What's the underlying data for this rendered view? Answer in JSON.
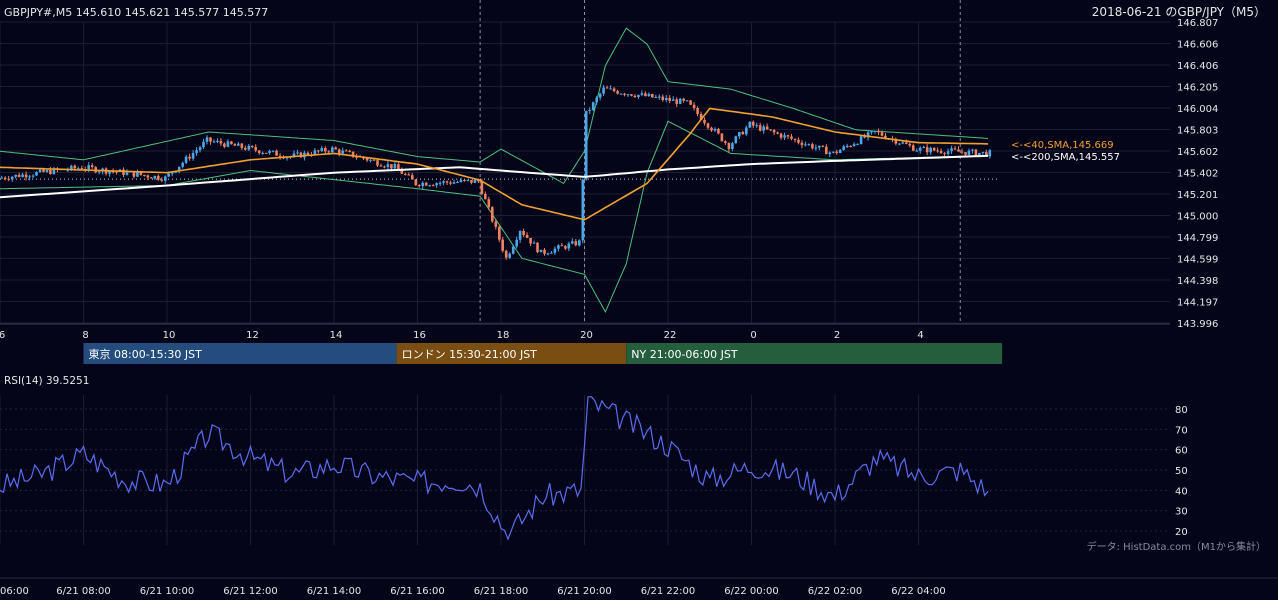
{
  "header": {
    "ohlc_label": "GBPJPY#,M5 145.610 145.621 145.577 145.577",
    "title": "2018-06-21 のGBP/JPY（M5）"
  },
  "price_axis": {
    "labels": [
      "146.807",
      "146.606",
      "146.406",
      "146.205",
      "146.004",
      "145.803",
      "145.602",
      "145.402",
      "145.201",
      "145.000",
      "144.799",
      "144.599",
      "144.398",
      "144.197",
      "143.996"
    ]
  },
  "time_axis_top": {
    "labels": [
      "6",
      "8",
      "10",
      "12",
      "14",
      "16",
      "18",
      "20",
      "22",
      "0",
      "2",
      "4"
    ]
  },
  "time_axis_bottom": {
    "labels": [
      "06:00",
      "6/21 08:00",
      "6/21 10:00",
      "6/21 12:00",
      "6/21 14:00",
      "6/21 16:00",
      "6/21 18:00",
      "6/21 20:00",
      "6/21 22:00",
      "6/22 00:00",
      "6/22 02:00",
      "6/22 04:00"
    ]
  },
  "sessions": [
    {
      "label": "東京 08:00-15:30 JST",
      "color": "#244d7e"
    },
    {
      "label": "ロンドン 15:30-21:00 JST",
      "color": "#7a4e12"
    },
    {
      "label": "NY 21:00-06:00 JST",
      "color": "#245e3c"
    }
  ],
  "indicator_labels": {
    "sma40": "<-<40,SMA,145.669",
    "sma200": "<-<200,SMA,145.557"
  },
  "rsi": {
    "title": "RSI(14) 39.5251",
    "labels": [
      "80",
      "70",
      "60",
      "50",
      "40",
      "30",
      "20"
    ]
  },
  "credit": "データ: HistData.com（M1から集計）",
  "colors": {
    "background": "#05051a",
    "candle_up": "#4aa8e8",
    "candle_down": "#f08060",
    "sma40": "#f0a030",
    "sma200": "#ffffff",
    "bollinger": "#4ec07a",
    "rsi_line": "#5a6cf0",
    "sma40_label": "#f0a030",
    "sma200_label": "#ffffff"
  },
  "chart_data": [
    {
      "type": "candlestick",
      "series_name": "GBPJPY#,M5",
      "ylim": [
        143.996,
        146.807
      ],
      "x_range": [
        "2018-06-21 06:00",
        "2018-06-22 05:40"
      ],
      "dotted_reference_price": 145.34,
      "key_points": [
        {
          "time": "2018-06-21 06:00",
          "price": 145.35
        },
        {
          "time": "2018-06-21 08:00",
          "price": 145.45
        },
        {
          "time": "2018-06-21 10:00",
          "price": 145.35
        },
        {
          "time": "2018-06-21 11:00",
          "price": 145.7
        },
        {
          "time": "2018-06-21 13:00",
          "price": 145.55
        },
        {
          "time": "2018-06-21 14:00",
          "price": 145.62
        },
        {
          "time": "2018-06-21 15:30",
          "price": 145.45
        },
        {
          "time": "2018-06-21 16:00",
          "price": 145.3
        },
        {
          "time": "2018-06-21 17:30",
          "price": 145.32
        },
        {
          "time": "2018-06-21 18:10",
          "price": 144.6
        },
        {
          "time": "2018-06-21 18:30",
          "price": 144.87
        },
        {
          "time": "2018-06-21 19:00",
          "price": 144.65
        },
        {
          "time": "2018-06-21 19:55",
          "price": 144.75
        },
        {
          "time": "2018-06-21 20:05",
          "price": 145.95
        },
        {
          "time": "2018-06-21 20:30",
          "price": 146.18
        },
        {
          "time": "2018-06-21 22:30",
          "price": 146.05
        },
        {
          "time": "2018-06-21 23:30",
          "price": 145.65
        },
        {
          "time": "2018-06-22 00:00",
          "price": 145.85
        },
        {
          "time": "2018-06-22 02:00",
          "price": 145.58
        },
        {
          "time": "2018-06-22 03:00",
          "price": 145.78
        },
        {
          "time": "2018-06-22 04:00",
          "price": 145.62
        },
        {
          "time": "2018-06-22 05:40",
          "price": 145.58
        }
      ],
      "sma40_points": [
        {
          "time": "2018-06-21 06:00",
          "price": 145.45
        },
        {
          "time": "2018-06-21 10:00",
          "price": 145.4
        },
        {
          "time": "2018-06-21 12:00",
          "price": 145.52
        },
        {
          "time": "2018-06-21 14:00",
          "price": 145.58
        },
        {
          "time": "2018-06-21 16:00",
          "price": 145.48
        },
        {
          "time": "2018-06-21 17:30",
          "price": 145.33
        },
        {
          "time": "2018-06-21 18:30",
          "price": 145.1
        },
        {
          "time": "2018-06-21 20:00",
          "price": 144.96
        },
        {
          "time": "2018-06-21 21:30",
          "price": 145.3
        },
        {
          "time": "2018-06-21 22:30",
          "price": 145.75
        },
        {
          "time": "2018-06-21 23:00",
          "price": 146.0
        },
        {
          "time": "2018-06-22 00:30",
          "price": 145.92
        },
        {
          "time": "2018-06-22 02:00",
          "price": 145.78
        },
        {
          "time": "2018-06-22 04:00",
          "price": 145.68
        },
        {
          "time": "2018-06-22 05:40",
          "price": 145.669
        }
      ],
      "sma200_points": [
        {
          "time": "2018-06-21 06:00",
          "price": 145.17
        },
        {
          "time": "2018-06-21 10:00",
          "price": 145.28
        },
        {
          "time": "2018-06-21 14:00",
          "price": 145.4
        },
        {
          "time": "2018-06-21 17:00",
          "price": 145.45
        },
        {
          "time": "2018-06-21 20:00",
          "price": 145.36
        },
        {
          "time": "2018-06-21 22:00",
          "price": 145.43
        },
        {
          "time": "2018-06-22 00:00",
          "price": 145.48
        },
        {
          "time": "2018-06-22 02:00",
          "price": 145.51
        },
        {
          "time": "2018-06-22 05:40",
          "price": 145.557
        }
      ],
      "bollinger_upper": [
        {
          "time": "2018-06-21 06:00",
          "price": 145.6
        },
        {
          "time": "2018-06-21 08:00",
          "price": 145.52
        },
        {
          "time": "2018-06-21 11:00",
          "price": 145.78
        },
        {
          "time": "2018-06-21 14:00",
          "price": 145.7
        },
        {
          "time": "2018-06-21 16:00",
          "price": 145.55
        },
        {
          "time": "2018-06-21 17:30",
          "price": 145.5
        },
        {
          "time": "2018-06-21 18:00",
          "price": 145.62
        },
        {
          "time": "2018-06-21 19:30",
          "price": 145.3
        },
        {
          "time": "2018-06-21 20:00",
          "price": 145.6
        },
        {
          "time": "2018-06-21 20:30",
          "price": 146.4
        },
        {
          "time": "2018-06-21 21:00",
          "price": 146.75
        },
        {
          "time": "2018-06-21 21:30",
          "price": 146.6
        },
        {
          "time": "2018-06-21 22:00",
          "price": 146.25
        },
        {
          "time": "2018-06-21 23:30",
          "price": 146.18
        },
        {
          "time": "2018-06-22 01:00",
          "price": 146.0
        },
        {
          "time": "2018-06-22 02:30",
          "price": 145.8
        },
        {
          "time": "2018-06-22 05:40",
          "price": 145.72
        }
      ],
      "bollinger_lower": [
        {
          "time": "2018-06-21 06:00",
          "price": 145.25
        },
        {
          "time": "2018-06-21 10:00",
          "price": 145.28
        },
        {
          "time": "2018-06-21 12:00",
          "price": 145.42
        },
        {
          "time": "2018-06-21 16:00",
          "price": 145.25
        },
        {
          "time": "2018-06-21 17:30",
          "price": 145.18
        },
        {
          "time": "2018-06-21 18:30",
          "price": 144.6
        },
        {
          "time": "2018-06-21 20:00",
          "price": 144.45
        },
        {
          "time": "2018-06-21 20:30",
          "price": 144.1
        },
        {
          "time": "2018-06-21 21:00",
          "price": 144.55
        },
        {
          "time": "2018-06-21 21:30",
          "price": 145.4
        },
        {
          "time": "2018-06-21 22:00",
          "price": 145.88
        },
        {
          "time": "2018-06-21 23:30",
          "price": 145.58
        },
        {
          "time": "2018-06-22 02:00",
          "price": 145.52
        },
        {
          "time": "2018-06-22 05:40",
          "price": 145.56
        }
      ]
    },
    {
      "type": "line",
      "series_name": "RSI(14)",
      "ylim": [
        15,
        88
      ],
      "last_value": 39.5251,
      "points": [
        {
          "time": "2018-06-21 06:00",
          "value": 42
        },
        {
          "time": "2018-06-21 07:00",
          "value": 48
        },
        {
          "time": "2018-06-21 08:00",
          "value": 58
        },
        {
          "time": "2018-06-21 09:00",
          "value": 45
        },
        {
          "time": "2018-06-21 10:00",
          "value": 43
        },
        {
          "time": "2018-06-21 11:00",
          "value": 68
        },
        {
          "time": "2018-06-21 12:00",
          "value": 56
        },
        {
          "time": "2018-06-21 13:00",
          "value": 48
        },
        {
          "time": "2018-06-21 14:00",
          "value": 53
        },
        {
          "time": "2018-06-21 15:00",
          "value": 47
        },
        {
          "time": "2018-06-21 16:00",
          "value": 44
        },
        {
          "time": "2018-06-21 17:00",
          "value": 45
        },
        {
          "time": "2018-06-21 17:30",
          "value": 42
        },
        {
          "time": "2018-06-21 18:10",
          "value": 18
        },
        {
          "time": "2018-06-21 19:00",
          "value": 37
        },
        {
          "time": "2018-06-21 19:55",
          "value": 40
        },
        {
          "time": "2018-06-21 20:05",
          "value": 84
        },
        {
          "time": "2018-06-21 21:00",
          "value": 74
        },
        {
          "time": "2018-06-21 22:00",
          "value": 62
        },
        {
          "time": "2018-06-21 23:00",
          "value": 45
        },
        {
          "time": "2018-06-22 00:00",
          "value": 52
        },
        {
          "time": "2018-06-22 01:00",
          "value": 48
        },
        {
          "time": "2018-06-22 02:00",
          "value": 37
        },
        {
          "time": "2018-06-22 03:00",
          "value": 56
        },
        {
          "time": "2018-06-22 04:00",
          "value": 47
        },
        {
          "time": "2018-06-22 05:00",
          "value": 50
        },
        {
          "time": "2018-06-22 05:40",
          "value": 39.5
        }
      ]
    }
  ]
}
